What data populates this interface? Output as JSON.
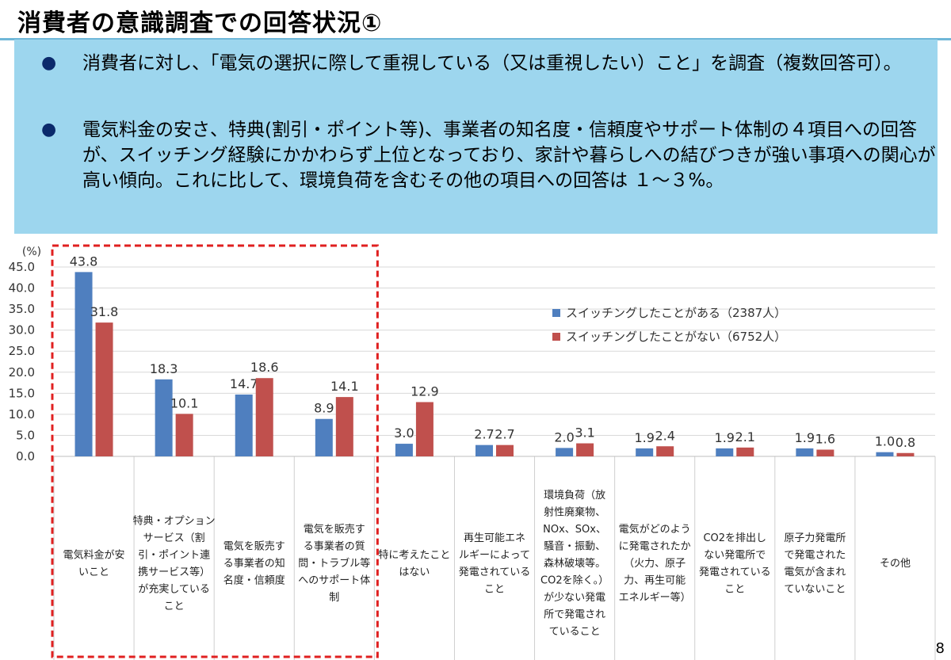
{
  "header": {
    "title": "消費者の意識調査での回答状況①"
  },
  "summary": {
    "bullet1": "消費者に対し、「電気の選択に際して重視している（又は重視したい）こと」を調査（複数回答可）。",
    "bullet2": "電気料金の安さ、特典(割引・ポイント等)、事業者の知名度・信頼度やサポート体制の４項目への回答が、スイッチング経験にかかわらず上位となっており、家計や暮らしへの結びつきが強い事項への関心が高い傾向。これに比して、環境負荷を含むその他の項目への回答は １～３%。"
  },
  "page_number": "8",
  "chart_data": {
    "type": "bar",
    "ylabel": "(%)",
    "ylim": [
      0,
      45
    ],
    "yticks": [
      "45.0",
      "40.0",
      "35.0",
      "30.0",
      "25.0",
      "20.0",
      "15.0",
      "10.0",
      "5.0",
      "0.0"
    ],
    "grid": true,
    "legend_position": "right",
    "categories": [
      [
        "電気料金が安",
        "いこと"
      ],
      [
        "特典・オプション",
        "サービス（割",
        "引・ポイント連",
        "携サービス等）",
        "が充実している",
        "こと"
      ],
      [
        "電気を販売す",
        "る事業者の知",
        "名度・信頼度"
      ],
      [
        "電気を販売す",
        "る事業者の質",
        "問・トラブル等",
        "へのサポート体",
        "制"
      ],
      [
        "特に考えたこと",
        "はない"
      ],
      [
        "再生可能エネ",
        "ルギーによって",
        "発電されている",
        "こと"
      ],
      [
        "環境負荷（放",
        "射性廃棄物、",
        "NOx、SOx、",
        "騒音・振動、",
        "森林破壊等。",
        "CO2を除く。）",
        "が少ない発電",
        "所で発電され",
        "ていること"
      ],
      [
        "電気がどのよう",
        "に発電されたか",
        "（火力、原子",
        "力、再生可能",
        "エネルギー等）"
      ],
      [
        "CO2を排出し",
        "ない発電所で",
        "発電されている",
        "こと"
      ],
      [
        "原子力発電所",
        "で発電された",
        "電気が含まれ",
        "ていないこと"
      ],
      [
        "その他"
      ]
    ],
    "series": [
      {
        "name": "スイッチングしたことがある（2387人）",
        "color": "#4f7fbf",
        "values": [
          43.8,
          18.3,
          14.7,
          8.9,
          3.0,
          2.7,
          2.0,
          1.9,
          1.9,
          1.9,
          1.0
        ],
        "labels": [
          "43.8",
          "18.3",
          "14.7",
          "8.9",
          "3.0",
          "2.7",
          "2.0",
          "1.9",
          "1.9",
          "1.9",
          "1.0"
        ]
      },
      {
        "name": "スイッチングしたことがない（6752人）",
        "color": "#c0504d",
        "values": [
          31.8,
          10.1,
          18.6,
          14.1,
          12.9,
          2.7,
          3.1,
          2.4,
          2.1,
          1.6,
          0.8
        ],
        "labels": [
          "31.8",
          "10.1",
          "18.6",
          "14.1",
          "12.9",
          "2.7",
          "3.1",
          "2.4",
          "2.1",
          "1.6",
          "0.8"
        ]
      }
    ],
    "highlight_first_n": 4,
    "highlight_color": "#e02020"
  }
}
